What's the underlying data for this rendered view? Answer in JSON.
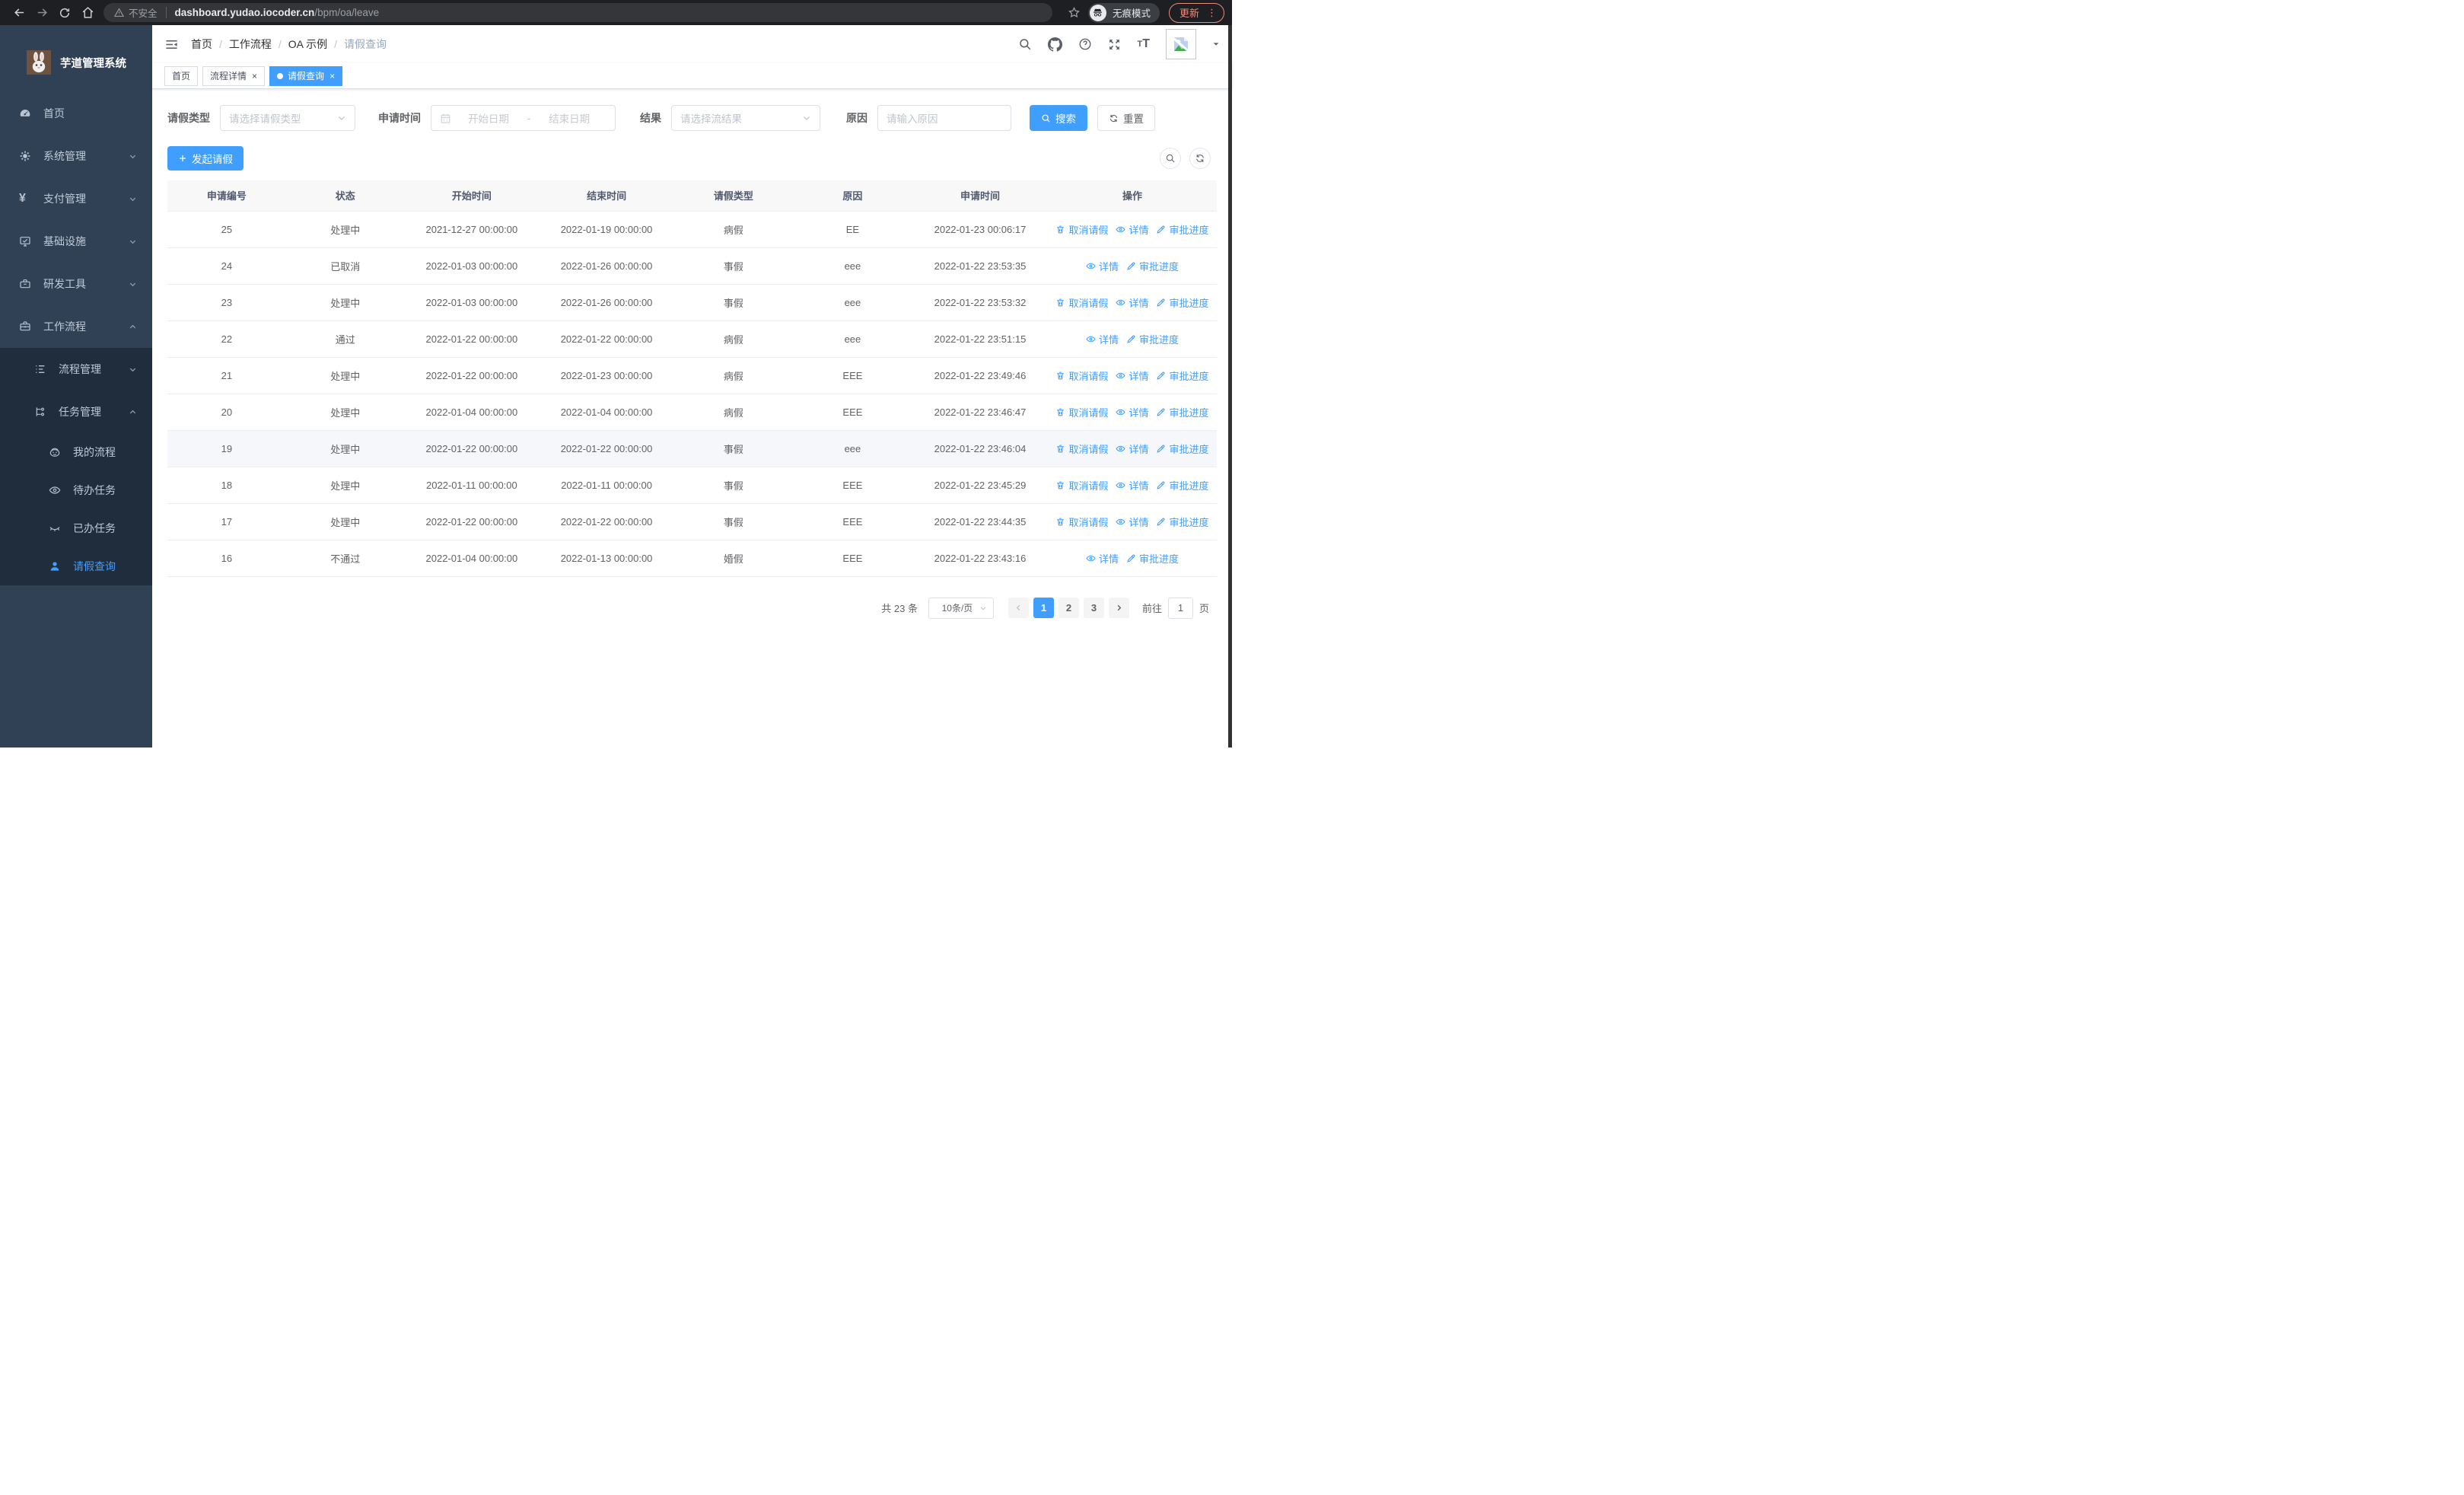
{
  "browser": {
    "security_label": "不安全",
    "url_host": "dashboard.yudao.iocoder.cn",
    "url_path": "/bpm/oa/leave",
    "incognito_label": "无痕模式",
    "update_label": "更新",
    "menu_dots": "⋮"
  },
  "sidebar": {
    "title": "芋道管理系统",
    "menu": [
      {
        "key": "home",
        "label": "首页",
        "icon": "dashboard",
        "level": 1,
        "submenu": false,
        "chevron": null,
        "active": false
      },
      {
        "key": "system",
        "label": "系统管理",
        "icon": "gear",
        "level": 1,
        "submenu": false,
        "chevron": "down",
        "active": false
      },
      {
        "key": "payment",
        "label": "支付管理",
        "icon": "yen",
        "level": 1,
        "submenu": false,
        "chevron": "down",
        "active": false
      },
      {
        "key": "infra",
        "label": "基础设施",
        "icon": "monitor",
        "level": 1,
        "submenu": false,
        "chevron": "down",
        "active": false
      },
      {
        "key": "devtools",
        "label": "研发工具",
        "icon": "toolbox",
        "level": 1,
        "submenu": false,
        "chevron": "down",
        "active": false
      },
      {
        "key": "workflow",
        "label": "工作流程",
        "icon": "briefcase",
        "level": 1,
        "submenu": false,
        "chevron": "up",
        "active": false
      },
      {
        "key": "process-mgmt",
        "label": "流程管理",
        "icon": "list",
        "level": 2,
        "submenu": true,
        "chevron": "down",
        "active": false
      },
      {
        "key": "task-mgmt",
        "label": "任务管理",
        "icon": "flow",
        "level": 2,
        "submenu": true,
        "chevron": "up",
        "active": false
      },
      {
        "key": "my-process",
        "label": "我的流程",
        "icon": "robot",
        "level": 3,
        "submenu": true,
        "chevron": null,
        "active": false
      },
      {
        "key": "todo-task",
        "label": "待办任务",
        "icon": "eye",
        "level": 3,
        "submenu": true,
        "chevron": null,
        "active": false
      },
      {
        "key": "done-task",
        "label": "已办任务",
        "icon": "eyeclosed",
        "level": 3,
        "submenu": true,
        "chevron": null,
        "active": false
      },
      {
        "key": "leave-query",
        "label": "请假查询",
        "icon": "user",
        "level": 3,
        "submenu": true,
        "chevron": null,
        "active": true
      }
    ]
  },
  "header": {
    "breadcrumb": [
      "首页",
      "工作流程",
      "OA 示例",
      "请假查询"
    ]
  },
  "tabs": [
    {
      "label": "首页",
      "closable": false,
      "active": false
    },
    {
      "label": "流程详情",
      "closable": true,
      "active": false
    },
    {
      "label": "请假查询",
      "closable": true,
      "active": true
    }
  ],
  "filters": {
    "leave_type_label": "请假类型",
    "leave_type_placeholder": "请选择请假类型",
    "apply_time_label": "申请时间",
    "start_date_placeholder": "开始日期",
    "range_separator": "-",
    "end_date_placeholder": "结束日期",
    "result_label": "结果",
    "result_placeholder": "请选择流结果",
    "reason_label": "原因",
    "reason_placeholder": "请输入原因",
    "search_label": "搜索",
    "reset_label": "重置"
  },
  "toolbar": {
    "create_label": "发起请假"
  },
  "table": {
    "columns": [
      "申请编号",
      "状态",
      "开始时间",
      "结束时间",
      "请假类型",
      "原因",
      "申请时间",
      "操作"
    ],
    "action_labels": {
      "cancel": "取消请假",
      "detail": "详情",
      "progress": "审批进度"
    },
    "rows": [
      {
        "id": "25",
        "status": "处理中",
        "start": "2021-12-27 00:00:00",
        "end": "2022-01-19 00:00:00",
        "type": "病假",
        "reason": "EE",
        "applied": "2022-01-23 00:06:17",
        "cancelable": true,
        "highlighted": false
      },
      {
        "id": "24",
        "status": "已取消",
        "start": "2022-01-03 00:00:00",
        "end": "2022-01-26 00:00:00",
        "type": "事假",
        "reason": "eee",
        "applied": "2022-01-22 23:53:35",
        "cancelable": false,
        "highlighted": false
      },
      {
        "id": "23",
        "status": "处理中",
        "start": "2022-01-03 00:00:00",
        "end": "2022-01-26 00:00:00",
        "type": "事假",
        "reason": "eee",
        "applied": "2022-01-22 23:53:32",
        "cancelable": true,
        "highlighted": false
      },
      {
        "id": "22",
        "status": "通过",
        "start": "2022-01-22 00:00:00",
        "end": "2022-01-22 00:00:00",
        "type": "病假",
        "reason": "eee",
        "applied": "2022-01-22 23:51:15",
        "cancelable": false,
        "highlighted": false
      },
      {
        "id": "21",
        "status": "处理中",
        "start": "2022-01-22 00:00:00",
        "end": "2022-01-23 00:00:00",
        "type": "病假",
        "reason": "EEE",
        "applied": "2022-01-22 23:49:46",
        "cancelable": true,
        "highlighted": false
      },
      {
        "id": "20",
        "status": "处理中",
        "start": "2022-01-04 00:00:00",
        "end": "2022-01-04 00:00:00",
        "type": "病假",
        "reason": "EEE",
        "applied": "2022-01-22 23:46:47",
        "cancelable": true,
        "highlighted": false
      },
      {
        "id": "19",
        "status": "处理中",
        "start": "2022-01-22 00:00:00",
        "end": "2022-01-22 00:00:00",
        "type": "事假",
        "reason": "eee",
        "applied": "2022-01-22 23:46:04",
        "cancelable": true,
        "highlighted": true
      },
      {
        "id": "18",
        "status": "处理中",
        "start": "2022-01-11 00:00:00",
        "end": "2022-01-11 00:00:00",
        "type": "事假",
        "reason": "EEE",
        "applied": "2022-01-22 23:45:29",
        "cancelable": true,
        "highlighted": false
      },
      {
        "id": "17",
        "status": "处理中",
        "start": "2022-01-22 00:00:00",
        "end": "2022-01-22 00:00:00",
        "type": "事假",
        "reason": "EEE",
        "applied": "2022-01-22 23:44:35",
        "cancelable": true,
        "highlighted": false
      },
      {
        "id": "16",
        "status": "不通过",
        "start": "2022-01-04 00:00:00",
        "end": "2022-01-13 00:00:00",
        "type": "婚假",
        "reason": "EEE",
        "applied": "2022-01-22 23:43:16",
        "cancelable": false,
        "highlighted": false
      }
    ]
  },
  "pagination": {
    "total_label": "共 23 条",
    "page_size": "10条/页",
    "pages": [
      "1",
      "2",
      "3"
    ],
    "active_page": "1",
    "goto_label": "前往",
    "goto_value": "1",
    "page_suffix": "页"
  },
  "colors": {
    "primary": "#409eff",
    "sidebar_bg": "#304156",
    "submenu_bg": "#1f2d3d",
    "active_tab_bg": "#409eff",
    "update_button": "#f08b80",
    "table_header_bg": "#f8f8f9"
  }
}
